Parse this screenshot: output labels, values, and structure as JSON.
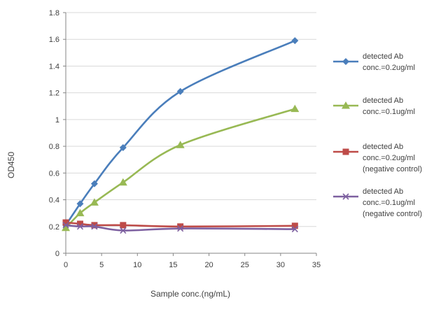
{
  "chart_data": {
    "type": "line",
    "xlabel": "Sample conc.(ng/mL)",
    "ylabel": "OD450",
    "xlim": [
      0,
      35
    ],
    "ylim": [
      0,
      1.8
    ],
    "x_ticks": [
      0,
      5,
      10,
      15,
      20,
      25,
      30,
      35
    ],
    "y_ticks": [
      0,
      0.2,
      0.4,
      0.6,
      0.8,
      1,
      1.2,
      1.4,
      1.6,
      1.8
    ],
    "grid": "horizontal",
    "legend_position": "right",
    "x": [
      0,
      2,
      4,
      8,
      16,
      32
    ],
    "series": [
      {
        "name": "detected Ab conc.=0.2ug/ml",
        "legend_lines": [
          "detected Ab",
          "conc.=0.2ug/ml"
        ],
        "color": "#4a7ebb",
        "marker": "diamond",
        "values": [
          0.21,
          0.37,
          0.52,
          0.79,
          1.21,
          1.59
        ]
      },
      {
        "name": "detected Ab conc.=0.1ug/ml",
        "legend_lines": [
          "detected Ab",
          "conc.=0.1ug/ml"
        ],
        "color": "#98b954",
        "marker": "triangle",
        "values": [
          0.19,
          0.3,
          0.38,
          0.53,
          0.81,
          1.08
        ]
      },
      {
        "name": "detected Ab conc.=0.2ug/ml (negative control)",
        "legend_lines": [
          "detected Ab",
          "conc.=0.2ug/ml",
          "(negative control)"
        ],
        "color": "#be4b48",
        "marker": "square",
        "values": [
          0.23,
          0.22,
          0.21,
          0.21,
          0.2,
          0.205
        ]
      },
      {
        "name": "detected Ab conc.=0.1ug/ml (negative control)",
        "legend_lines": [
          "detected Ab",
          "conc.=0.1ug/ml",
          "(negative control)"
        ],
        "color": "#7d60a0",
        "marker": "x",
        "values": [
          0.21,
          0.2,
          0.2,
          0.17,
          0.185,
          0.18
        ]
      }
    ]
  }
}
